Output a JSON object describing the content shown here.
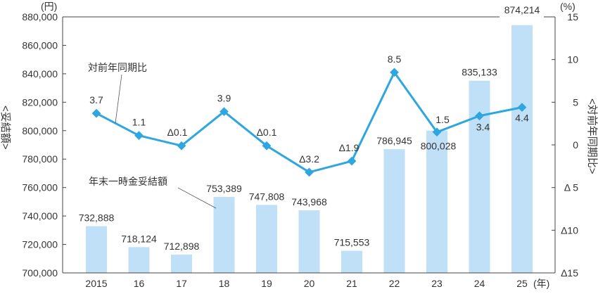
{
  "chart_data": {
    "type": "bar+line",
    "categories": [
      "2015",
      "16",
      "17",
      "18",
      "19",
      "20",
      "21",
      "22",
      "23",
      "24",
      "25"
    ],
    "x_unit": "(年)",
    "series": [
      {
        "name": "年末一時金妥結額",
        "type": "bar",
        "axis": "left",
        "values": [
          732888,
          718124,
          712898,
          753389,
          747808,
          743968,
          715553,
          786945,
          800028,
          835133,
          874214
        ],
        "labels": [
          "732,888",
          "718,124",
          "712,898",
          "753,389",
          "747,808",
          "743,968",
          "715,553",
          "786,945",
          "800,028",
          "835,133",
          "874,214"
        ],
        "color": "#bfe0f6"
      },
      {
        "name": "対前年同期比",
        "type": "line",
        "axis": "right",
        "values": [
          3.7,
          1.1,
          -0.1,
          3.9,
          -0.1,
          -3.2,
          -1.9,
          8.5,
          1.5,
          3.4,
          4.4
        ],
        "labels": [
          "3.7",
          "1.1",
          "Δ0.1",
          "3.9",
          "Δ0.1",
          "Δ3.2",
          "Δ1.9",
          "8.5",
          "1.5",
          "3.4",
          "4.4"
        ],
        "color": "#2ea6df"
      }
    ],
    "left_axis": {
      "label": "<妥結額>",
      "unit": "(円)",
      "ylim": [
        700000,
        880000
      ],
      "ticks": [
        "700,000",
        "720,000",
        "740,000",
        "760,000",
        "780,000",
        "800,000",
        "820,000",
        "840,000",
        "860,000",
        "880,000"
      ]
    },
    "right_axis": {
      "label": "<対前年同期比>",
      "unit": "(%)",
      "ylim": [
        -15,
        15
      ],
      "ticks": [
        "Δ15",
        "Δ10",
        "Δ 5",
        "0",
        "5",
        "10",
        "15"
      ]
    },
    "grid": false
  }
}
